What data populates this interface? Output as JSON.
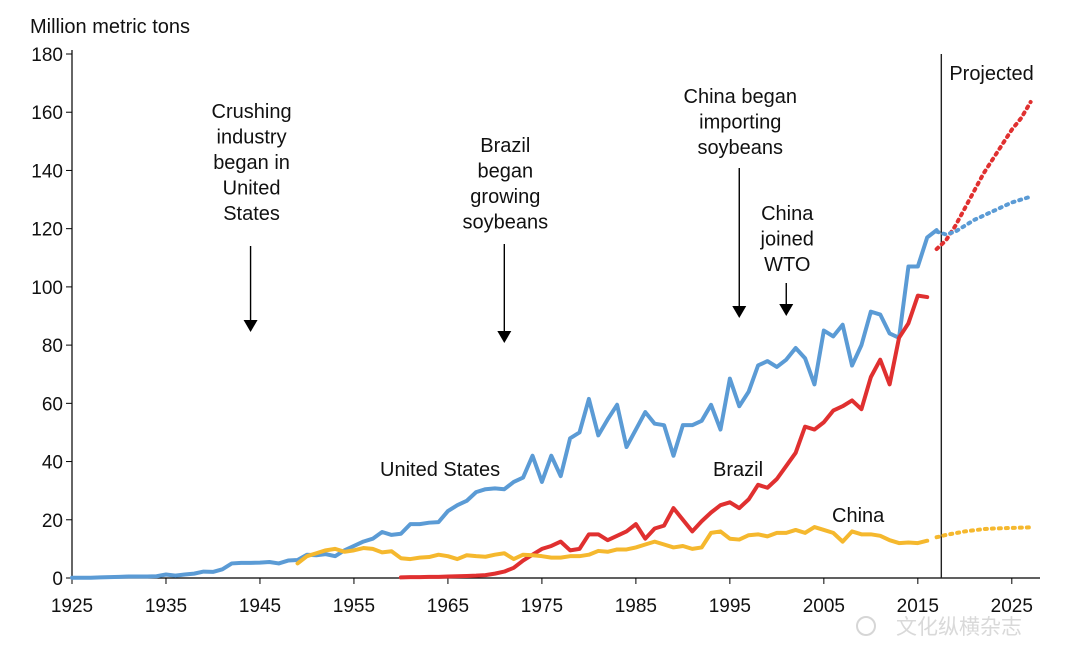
{
  "chart_data": {
    "type": "line",
    "ylabel": "Million metric tons",
    "xlabel": "",
    "title": "",
    "xlim": [
      1925,
      2028
    ],
    "ylim": [
      0,
      180
    ],
    "x_ticks": [
      1925,
      1935,
      1945,
      1955,
      1965,
      1975,
      1985,
      1995,
      2005,
      2015,
      2025
    ],
    "y_ticks": [
      0,
      20,
      40,
      60,
      80,
      100,
      120,
      140,
      160,
      180
    ],
    "grid": false,
    "projection_start_year": 2017.5,
    "projected_label": "Projected",
    "series": [
      {
        "name": "United States",
        "color": "#5b9bd5",
        "x": [
          1925,
          1926,
          1927,
          1928,
          1929,
          1930,
          1931,
          1932,
          1933,
          1934,
          1935,
          1936,
          1937,
          1938,
          1939,
          1940,
          1941,
          1942,
          1943,
          1944,
          1945,
          1946,
          1947,
          1948,
          1949,
          1950,
          1951,
          1952,
          1953,
          1954,
          1955,
          1956,
          1957,
          1958,
          1959,
          1960,
          1961,
          1962,
          1963,
          1964,
          1965,
          1966,
          1967,
          1968,
          1969,
          1970,
          1971,
          1972,
          1973,
          1974,
          1975,
          1976,
          1977,
          1978,
          1979,
          1980,
          1981,
          1982,
          1983,
          1984,
          1985,
          1986,
          1987,
          1988,
          1989,
          1990,
          1991,
          1992,
          1993,
          1994,
          1995,
          1996,
          1997,
          1998,
          1999,
          2000,
          2001,
          2002,
          2003,
          2004,
          2005,
          2006,
          2007,
          2008,
          2009,
          2010,
          2011,
          2012,
          2013,
          2014,
          2015,
          2016,
          2017
        ],
        "values": [
          0.1,
          0.1,
          0.1,
          0.2,
          0.3,
          0.4,
          0.5,
          0.5,
          0.5,
          0.6,
          1.2,
          0.8,
          1.2,
          1.5,
          2.2,
          2.1,
          3.0,
          5.0,
          5.2,
          5.2,
          5.3,
          5.5,
          5.0,
          6.0,
          6.2,
          8.0,
          7.8,
          8.2,
          7.5,
          9.5,
          11.0,
          12.5,
          13.5,
          15.8,
          14.8,
          15.2,
          18.5,
          18.5,
          19.0,
          19.2,
          23.0,
          25.0,
          26.5,
          29.5,
          30.5,
          30.8,
          30.5,
          33.0,
          34.5,
          42.0,
          33.0,
          42.0,
          35.0,
          48.0,
          50.0,
          61.5,
          49.0,
          54.5,
          59.5,
          45.0,
          51.0,
          57.0,
          53.0,
          52.5,
          42.0,
          52.5,
          52.5,
          54.0,
          59.5,
          51.0,
          68.5,
          59.0,
          64.0,
          73.0,
          74.5,
          72.5,
          75.0,
          79.0,
          75.5,
          66.5,
          85.0,
          83.0,
          87.0,
          73.0,
          80.0,
          91.5,
          90.5,
          84.0,
          82.5,
          107.0,
          107.0,
          117.0,
          119.5
        ]
      },
      {
        "name": "Brazil",
        "color": "#e03030",
        "x": [
          1960,
          1961,
          1962,
          1963,
          1964,
          1965,
          1966,
          1967,
          1968,
          1969,
          1970,
          1971,
          1972,
          1973,
          1974,
          1975,
          1976,
          1977,
          1978,
          1979,
          1980,
          1981,
          1982,
          1983,
          1984,
          1985,
          1986,
          1987,
          1988,
          1989,
          1990,
          1991,
          1992,
          1993,
          1994,
          1995,
          1996,
          1997,
          1998,
          1999,
          2000,
          2001,
          2002,
          2003,
          2004,
          2005,
          2006,
          2007,
          2008,
          2009,
          2010,
          2011,
          2012,
          2013,
          2014,
          2015,
          2016
        ],
        "values": [
          0.2,
          0.3,
          0.3,
          0.4,
          0.4,
          0.5,
          0.6,
          0.7,
          0.8,
          1.0,
          1.5,
          2.2,
          3.5,
          6.0,
          8.0,
          10.0,
          11.0,
          12.5,
          9.5,
          10.0,
          15.0,
          15.0,
          13.0,
          14.5,
          16.0,
          18.5,
          13.5,
          17.0,
          18.0,
          24.0,
          20.0,
          16.0,
          19.5,
          22.5,
          25.0,
          26.0,
          24.0,
          27.0,
          32.0,
          31.0,
          34.0,
          38.5,
          43.0,
          52.0,
          51.0,
          53.5,
          57.5,
          59.0,
          61.0,
          58.0,
          69.0,
          75.0,
          66.5,
          82.5,
          87.5,
          97.0,
          96.5
        ]
      },
      {
        "name": "China",
        "color": "#f5b82e",
        "x": [
          1949,
          1950,
          1951,
          1952,
          1953,
          1954,
          1955,
          1956,
          1957,
          1958,
          1959,
          1960,
          1961,
          1962,
          1963,
          1964,
          1965,
          1966,
          1967,
          1968,
          1969,
          1970,
          1971,
          1972,
          1973,
          1974,
          1975,
          1976,
          1977,
          1978,
          1979,
          1980,
          1981,
          1982,
          1983,
          1984,
          1985,
          1986,
          1987,
          1988,
          1989,
          1990,
          1991,
          1992,
          1993,
          1994,
          1995,
          1996,
          1997,
          1998,
          1999,
          2000,
          2001,
          2002,
          2003,
          2004,
          2005,
          2006,
          2007,
          2008,
          2009,
          2010,
          2011,
          2012,
          2013,
          2014,
          2015,
          2016
        ],
        "values": [
          5.0,
          7.5,
          8.5,
          9.5,
          10.0,
          9.0,
          9.5,
          10.3,
          10.0,
          8.8,
          9.2,
          6.8,
          6.5,
          7.0,
          7.2,
          8.0,
          7.5,
          6.5,
          7.8,
          7.5,
          7.3,
          8.0,
          8.5,
          6.5,
          8.0,
          7.8,
          7.5,
          7.0,
          7.0,
          7.5,
          7.5,
          8.0,
          9.3,
          9.0,
          9.8,
          9.8,
          10.5,
          11.5,
          12.5,
          11.5,
          10.5,
          11.0,
          10.0,
          10.5,
          15.5,
          16.0,
          13.5,
          13.2,
          14.7,
          15.0,
          14.3,
          15.5,
          15.5,
          16.5,
          15.5,
          17.5,
          16.5,
          15.5,
          12.5,
          16.0,
          15.0,
          15.0,
          14.5,
          13.0,
          12.0,
          12.2,
          12.0,
          12.8
        ]
      }
    ],
    "projections": [
      {
        "name": "Brazil",
        "color": "#e03030",
        "x": [
          2017,
          2018,
          2019,
          2020,
          2021,
          2022,
          2023,
          2024,
          2025,
          2026,
          2027
        ],
        "values": [
          113,
          116,
          121,
          127,
          133,
          139,
          144,
          149,
          154,
          158,
          163.5
        ]
      },
      {
        "name": "United States",
        "color": "#5b9bd5",
        "x": [
          2017,
          2018,
          2019,
          2020,
          2021,
          2022,
          2023,
          2024,
          2025,
          2026,
          2027
        ],
        "values": [
          119,
          118,
          119,
          121,
          123,
          124.5,
          126,
          127.5,
          129,
          130,
          131
        ]
      },
      {
        "name": "China",
        "color": "#f5b82e",
        "x": [
          2017,
          2018,
          2019,
          2020,
          2021,
          2022,
          2023,
          2024,
          2025,
          2026,
          2027
        ],
        "values": [
          14,
          14.8,
          15.4,
          16.0,
          16.4,
          16.8,
          17.0,
          17.1,
          17.2,
          17.3,
          17.4
        ]
      }
    ],
    "series_labels": [
      {
        "name": "United States",
        "text": "United States"
      },
      {
        "name": "Brazil",
        "text": "Brazil"
      },
      {
        "name": "China",
        "text": "China"
      }
    ],
    "annotations": [
      {
        "id": "crushing",
        "lines": [
          "Crushing",
          "industry",
          "began in",
          "United",
          "States"
        ],
        "year": 1944
      },
      {
        "id": "brazil-growing",
        "lines": [
          "Brazil",
          "began",
          "growing",
          "soybeans"
        ],
        "year": 1971
      },
      {
        "id": "china-importing",
        "lines": [
          "China began",
          "importing",
          "soybeans"
        ],
        "year": 1996
      },
      {
        "id": "china-wto",
        "lines": [
          "China",
          "joined",
          "WTO"
        ],
        "year": 2001
      }
    ]
  },
  "watermark": {
    "text": "文化纵横杂志"
  }
}
